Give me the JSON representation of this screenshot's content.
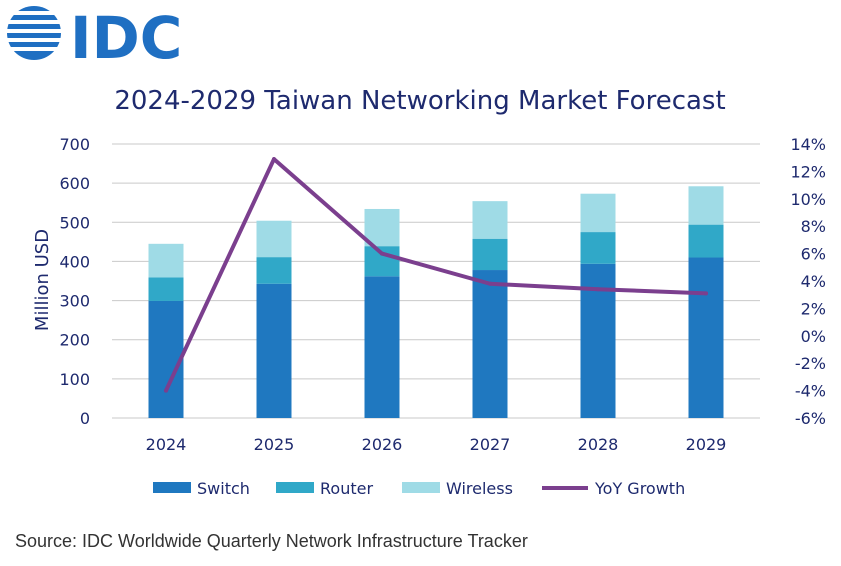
{
  "logo": {
    "text": "IDC",
    "color": "#1f6fc2"
  },
  "source": "Source: IDC Worldwide Quarterly Network Infrastructure Tracker",
  "colors": {
    "switch": "#1f78c0",
    "router": "#30a8c8",
    "wireless": "#9fdbe6",
    "yoy": "#7b3f8e",
    "text": "#1e2a6e",
    "grid": "#c9c9c9"
  },
  "chart_data": {
    "type": "bar",
    "title": "2024-2029 Taiwan Networking Market Forecast",
    "ylabel": "Million USD",
    "y2label": "",
    "categories": [
      "2024",
      "2025",
      "2026",
      "2027",
      "2028",
      "2029"
    ],
    "ylim": [
      0,
      700
    ],
    "yticks": [
      "0",
      "100",
      "200",
      "300",
      "400",
      "500",
      "600",
      "700"
    ],
    "y2lim": [
      -6,
      14
    ],
    "y2ticks": [
      "-6%",
      "-4%",
      "-2%",
      "0%",
      "2%",
      "4%",
      "6%",
      "8%",
      "10%",
      "12%",
      "14%"
    ],
    "stacked": true,
    "series": [
      {
        "name": "Switch",
        "kind": "bar",
        "values": [
          299,
          343,
          362,
          378,
          394,
          410
        ]
      },
      {
        "name": "Router",
        "kind": "bar",
        "values": [
          60,
          68,
          77,
          80,
          81,
          84
        ]
      },
      {
        "name": "Wireless",
        "kind": "bar",
        "values": [
          86,
          93,
          95,
          96,
          98,
          98
        ]
      },
      {
        "name": "YoY Growth",
        "kind": "line",
        "axis": "right",
        "values": [
          -4.0,
          12.9,
          6.0,
          3.8,
          3.4,
          3.1
        ]
      }
    ],
    "legend": "bottom",
    "grid": true
  }
}
